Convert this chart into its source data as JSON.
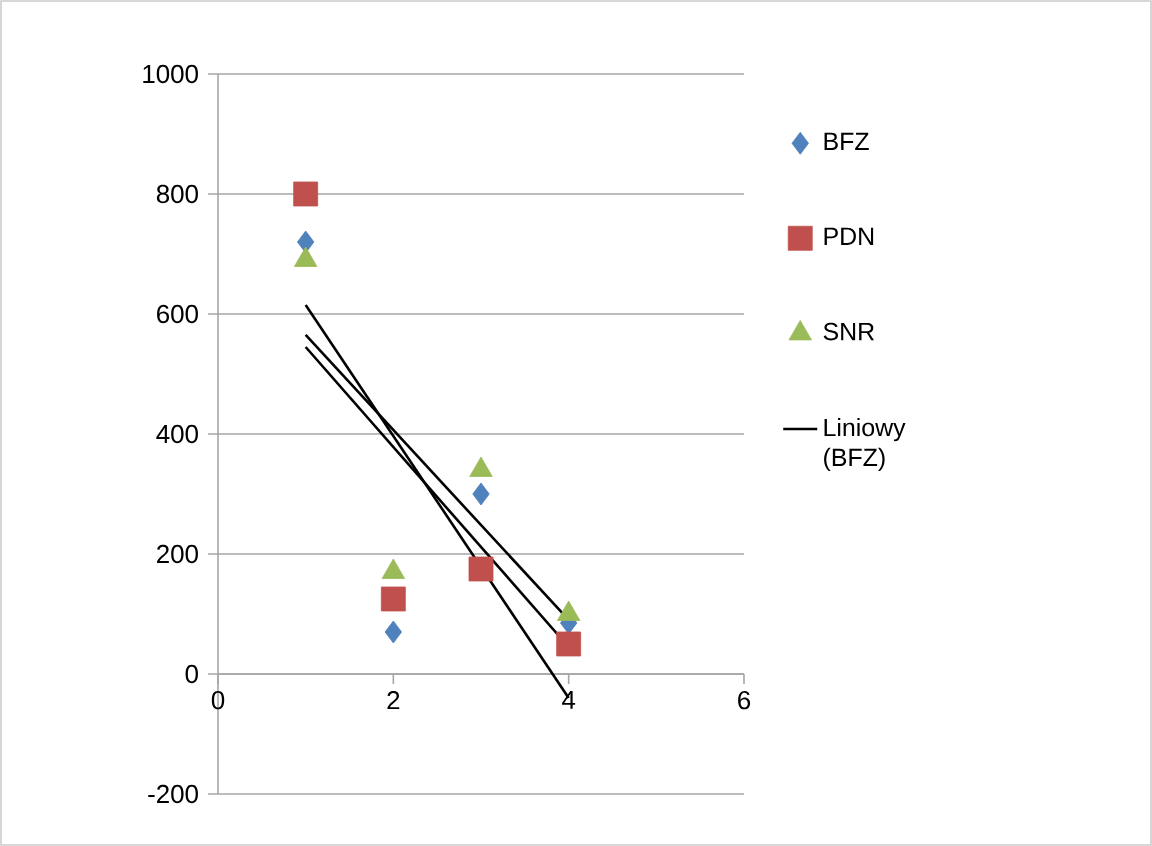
{
  "chart_data": {
    "type": "scatter",
    "xlim": [
      0,
      6
    ],
    "xticks": [
      0,
      2,
      4,
      6
    ],
    "ylim": [
      -200,
      1000
    ],
    "yticks": [
      -200,
      0,
      200,
      400,
      600,
      800,
      1000
    ],
    "grid": "y",
    "legend": "right",
    "series": [
      {
        "name": "BFZ",
        "color": "#4f81bd",
        "marker": "diamond",
        "x": [
          1,
          2,
          3,
          4
        ],
        "values": [
          720,
          70,
          300,
          85
        ]
      },
      {
        "name": "PDN",
        "color": "#c0504d",
        "marker": "square",
        "x": [
          1,
          2,
          3,
          4
        ],
        "values": [
          800,
          125,
          175,
          50
        ]
      },
      {
        "name": "SNR",
        "color": "#9bbb59",
        "marker": "triangle",
        "x": [
          1,
          2,
          3,
          4
        ],
        "values": [
          690,
          170,
          340,
          100
        ]
      },
      {
        "name": "Liniowy (BFZ)",
        "type": "line",
        "color": "#000000",
        "marker": "none",
        "line_style": "solid",
        "x": [
          1,
          4
        ],
        "values": [
          545,
          45
        ]
      },
      {
        "type": "line",
        "color": "#000000",
        "marker": "none",
        "line_style": "solid",
        "x": [
          1,
          4
        ],
        "values": [
          615,
          -40
        ]
      },
      {
        "type": "line",
        "color": "#000000",
        "marker": "none",
        "line_style": "solid",
        "x": [
          1,
          4
        ],
        "values": [
          565,
          90
        ]
      }
    ]
  }
}
